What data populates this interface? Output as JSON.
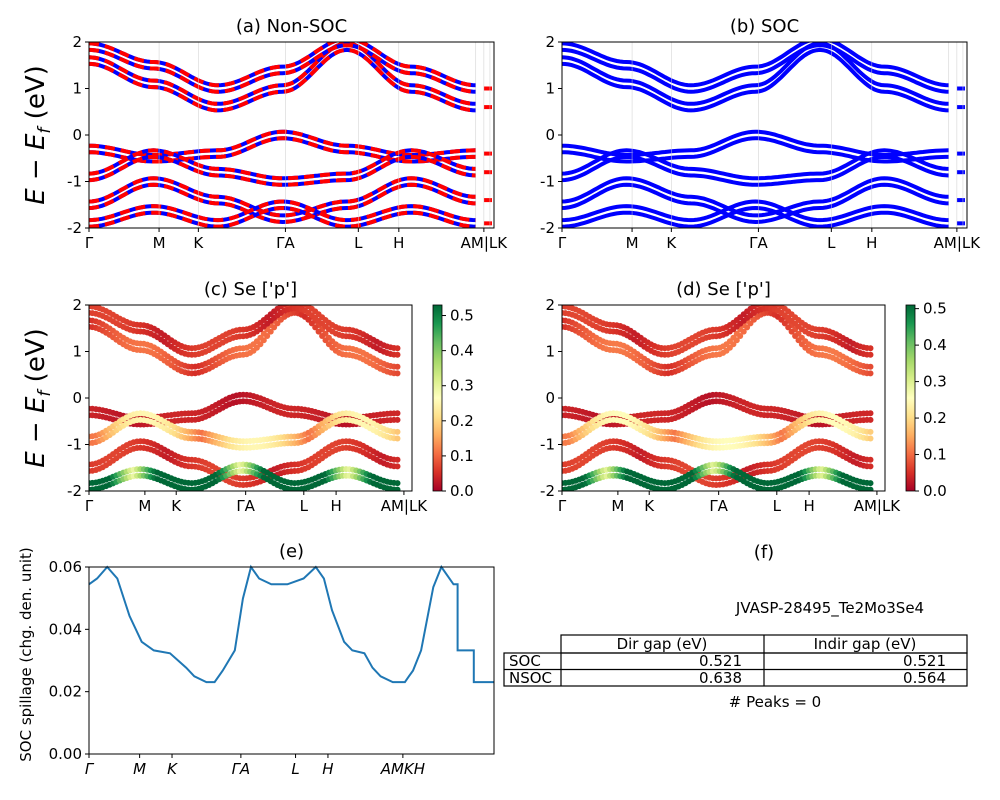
{
  "figure_title": "JVASP-28495_Te2Mo3Se4",
  "colors": {
    "nsoc_red": "#ff0000",
    "nsoc_blue": "#0000ff",
    "soc_blue": "#0000ff",
    "spillage_line": "#1f77b4"
  },
  "band_ylabel": "E − E_f (eV)",
  "kpoint_labels": [
    "Γ",
    "M",
    "K",
    "ΓA",
    "L",
    "H",
    "AM|LK"
  ],
  "chart_data": [
    {
      "id": "a",
      "type": "line",
      "title": "(a) Non-SOC",
      "xlabel": "",
      "ylabel": "E − E_f (eV)",
      "ylim": [
        -2,
        2
      ],
      "yticks": [
        "-2",
        "-1",
        "0",
        "1",
        "2"
      ],
      "xticks": [
        "Γ",
        "M",
        "K",
        "ΓA",
        "L",
        "H",
        "AM|LK"
      ],
      "series": [
        {
          "values": [
            1.6,
            1.1,
            0.6,
            1.0,
            1.9,
            1.0,
            0.6
          ]
        },
        {
          "values": [
            1.9,
            1.5,
            1.0,
            1.4,
            2.0,
            1.4,
            1.0
          ]
        },
        {
          "values": [
            -0.3,
            -0.5,
            -0.4,
            0.0,
            -0.3,
            -0.5,
            -0.4
          ]
        },
        {
          "values": [
            -0.9,
            -0.4,
            -0.8,
            -1.0,
            -0.9,
            -0.4,
            -0.8
          ]
        },
        {
          "values": [
            -1.5,
            -1.0,
            -1.4,
            -1.8,
            -1.5,
            -1.0,
            -1.4
          ]
        },
        {
          "values": [
            -1.9,
            -1.6,
            -1.9,
            -1.5,
            -1.9,
            -1.6,
            -1.9
          ]
        }
      ]
    },
    {
      "id": "b",
      "type": "line",
      "title": "(b) SOC",
      "xlabel": "",
      "ylabel": "",
      "ylim": [
        -2,
        2
      ],
      "yticks": [
        "-2",
        "-1",
        "0",
        "1",
        "2"
      ],
      "xticks": [
        "Γ",
        "M",
        "K",
        "ΓA",
        "L",
        "H",
        "AM|LK"
      ],
      "series": [
        {
          "values": [
            1.6,
            1.1,
            0.6,
            1.0,
            1.9,
            1.0,
            0.6
          ]
        },
        {
          "values": [
            1.9,
            1.5,
            1.0,
            1.4,
            2.0,
            1.4,
            1.0
          ]
        },
        {
          "values": [
            -0.3,
            -0.5,
            -0.4,
            0.0,
            -0.3,
            -0.5,
            -0.4
          ]
        },
        {
          "values": [
            -0.9,
            -0.4,
            -0.8,
            -1.0,
            -0.9,
            -0.4,
            -0.8
          ]
        },
        {
          "values": [
            -1.5,
            -1.0,
            -1.4,
            -1.8,
            -1.5,
            -1.0,
            -1.4
          ]
        },
        {
          "values": [
            -1.9,
            -1.6,
            -1.9,
            -1.5,
            -1.9,
            -1.6,
            -1.9
          ]
        }
      ]
    },
    {
      "id": "c",
      "type": "scatter",
      "title": "(c)  Se ['p']",
      "xlabel": "",
      "ylabel": "E − E_f (eV)",
      "ylim": [
        -2,
        2
      ],
      "yticks": [
        "-2",
        "-1",
        "0",
        "1",
        "2"
      ],
      "xticks": [
        "Γ",
        "M",
        "K",
        "ΓA",
        "L",
        "H",
        "AM|LK"
      ],
      "colorbar": {
        "range": [
          0.0,
          0.53
        ],
        "ticks": [
          "0.0",
          "0.1",
          "0.2",
          "0.3",
          "0.4",
          "0.5"
        ],
        "colormap": "RdYlGn"
      },
      "series": [
        {
          "values": [
            1.6,
            1.1,
            0.6,
            1.0,
            1.9,
            1.0,
            0.6
          ],
          "weight": 0.08
        },
        {
          "values": [
            1.9,
            1.5,
            1.0,
            1.4,
            2.0,
            1.4,
            1.0
          ],
          "weight": 0.05
        },
        {
          "values": [
            -0.3,
            -0.5,
            -0.4,
            0.0,
            -0.3,
            -0.5,
            -0.4
          ],
          "weight": 0.03
        },
        {
          "values": [
            -0.9,
            -0.4,
            -0.8,
            -1.0,
            -0.9,
            -0.4,
            -0.8
          ],
          "weight": 0.18
        },
        {
          "values": [
            -1.5,
            -1.0,
            -1.4,
            -1.8,
            -1.5,
            -1.0,
            -1.4
          ],
          "weight": 0.05
        },
        {
          "values": [
            -1.9,
            -1.6,
            -1.9,
            -1.5,
            -1.9,
            -1.6,
            -1.9
          ],
          "weight": 0.48
        }
      ]
    },
    {
      "id": "d",
      "type": "scatter",
      "title": "(d) Se ['p']",
      "xlabel": "",
      "ylabel": "",
      "ylim": [
        -2,
        2
      ],
      "yticks": [
        "-2",
        "-1",
        "0",
        "1",
        "2"
      ],
      "xticks": [
        "Γ",
        "M",
        "K",
        "ΓA",
        "L",
        "H",
        "AM|LK"
      ],
      "colorbar": {
        "range": [
          0.0,
          0.51
        ],
        "ticks": [
          "0.0",
          "0.1",
          "0.2",
          "0.3",
          "0.4",
          "0.5"
        ],
        "colormap": "RdYlGn"
      },
      "series": [
        {
          "values": [
            1.6,
            1.1,
            0.6,
            1.0,
            1.9,
            1.0,
            0.6
          ],
          "weight": 0.08
        },
        {
          "values": [
            1.9,
            1.5,
            1.0,
            1.4,
            2.0,
            1.4,
            1.0
          ],
          "weight": 0.05
        },
        {
          "values": [
            -0.3,
            -0.5,
            -0.4,
            0.0,
            -0.3,
            -0.5,
            -0.4
          ],
          "weight": 0.03
        },
        {
          "values": [
            -0.9,
            -0.4,
            -0.8,
            -1.0,
            -0.9,
            -0.4,
            -0.8
          ],
          "weight": 0.18
        },
        {
          "values": [
            -1.5,
            -1.0,
            -1.4,
            -1.8,
            -1.5,
            -1.0,
            -1.4
          ],
          "weight": 0.05
        },
        {
          "values": [
            -1.9,
            -1.6,
            -1.9,
            -1.5,
            -1.9,
            -1.6,
            -1.9
          ],
          "weight": 0.48
        }
      ]
    },
    {
      "id": "e",
      "type": "line",
      "title": "(e)",
      "xlabel": "",
      "ylabel": "SOC spillage (chg. den. unit)",
      "ylim": [
        0.0,
        0.065
      ],
      "yticks": [
        "0.00",
        "0.02",
        "0.04",
        "0.06"
      ],
      "xticks": [
        "Γ",
        "M",
        "K",
        "ΓA",
        "L",
        "H",
        "AMKH"
      ],
      "x": [
        0,
        0.02,
        0.045,
        0.07,
        0.1,
        0.13,
        0.16,
        0.2,
        0.24,
        0.26,
        0.29,
        0.31,
        0.33,
        0.36,
        0.38,
        0.4,
        0.42,
        0.45,
        0.49,
        0.53,
        0.56,
        0.58,
        0.6,
        0.63,
        0.65,
        0.68,
        0.7,
        0.72,
        0.75,
        0.78,
        0.79,
        0.8,
        0.82,
        0.85,
        0.87,
        0.9,
        0.91,
        0.91,
        0.95,
        0.95,
        1.0
      ],
      "values": [
        0.059,
        0.061,
        0.065,
        0.061,
        0.048,
        0.039,
        0.036,
        0.035,
        0.03,
        0.027,
        0.025,
        0.025,
        0.029,
        0.036,
        0.054,
        0.065,
        0.061,
        0.059,
        0.059,
        0.061,
        0.065,
        0.061,
        0.05,
        0.039,
        0.036,
        0.035,
        0.03,
        0.027,
        0.025,
        0.025,
        0.027,
        0.029,
        0.036,
        0.058,
        0.065,
        0.059,
        0.059,
        0.036,
        0.036,
        0.025,
        0.025
      ]
    }
  ],
  "table": {
    "panel_title": "(f)",
    "headers": [
      "",
      "Dir gap (eV)",
      "Indir gap (eV)"
    ],
    "rows": [
      [
        "SOC",
        "0.521",
        "0.521"
      ],
      [
        "NSOC",
        "0.638",
        "0.564"
      ]
    ],
    "peaks": "# Peaks = 0"
  }
}
